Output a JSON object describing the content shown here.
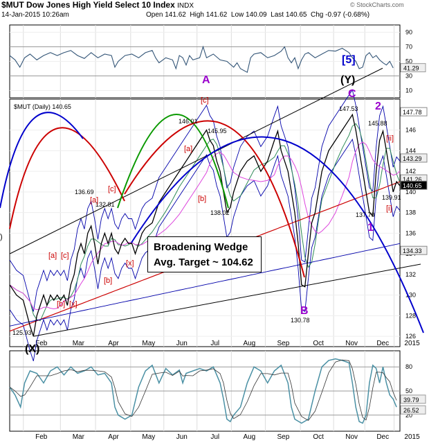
{
  "header": {
    "symbol": "$MUT",
    "name": "Dow Jones High Yield Select 10 Index",
    "exchange": "INDX",
    "date": "14-Jan-2015 10:26am",
    "open": "Open 141.62",
    "high": "High 141.62",
    "low": "Low 140.09",
    "last": "Last 140.65",
    "chg": "Chg -0.97 (-0.68%)",
    "watermark": "© StockCharts.com"
  },
  "price_label": "$MUT (Daily) 140.65",
  "annotation_box": {
    "line1": "Broadening Wedge",
    "line2": "Avg. Target ~ 104.62"
  },
  "colors": {
    "price": "#000000",
    "ma_short": "#2e8b57",
    "ma_mid": "#dd44dd",
    "ma_200": "#cc0000",
    "band": "#0000aa",
    "wave_red": "#cc0000",
    "wave_purple": "#9900cc",
    "wave_blue": "#0000cc",
    "rsi": "#335577",
    "stoch": "#4a90a4"
  },
  "chart_data": [
    {
      "type": "line",
      "title": "RSI",
      "ylim": [
        0,
        100
      ],
      "yticks": [
        10,
        30,
        50,
        70,
        90
      ],
      "value_labels": [
        "41.29"
      ],
      "points": [
        [
          0,
          58
        ],
        [
          8,
          52
        ],
        [
          15,
          42
        ],
        [
          22,
          55
        ],
        [
          30,
          60
        ],
        [
          40,
          52
        ],
        [
          50,
          58
        ],
        [
          60,
          62
        ],
        [
          70,
          58
        ],
        [
          80,
          62
        ],
        [
          90,
          65
        ],
        [
          100,
          58
        ],
        [
          110,
          54
        ],
        [
          120,
          62
        ],
        [
          130,
          55
        ],
        [
          140,
          60
        ],
        [
          150,
          58
        ],
        [
          155,
          42
        ],
        [
          160,
          50
        ],
        [
          170,
          58
        ],
        [
          180,
          60
        ],
        [
          190,
          55
        ],
        [
          200,
          62
        ],
        [
          210,
          65
        ],
        [
          215,
          55
        ],
        [
          220,
          48
        ],
        [
          230,
          55
        ],
        [
          240,
          52
        ],
        [
          245,
          40
        ],
        [
          250,
          58
        ],
        [
          255,
          55
        ],
        [
          260,
          45
        ],
        [
          265,
          58
        ],
        [
          270,
          52
        ],
        [
          280,
          55
        ],
        [
          285,
          70
        ],
        [
          290,
          55
        ],
        [
          300,
          60
        ],
        [
          310,
          52
        ],
        [
          320,
          50
        ],
        [
          330,
          42
        ],
        [
          335,
          48
        ],
        [
          340,
          40
        ],
        [
          350,
          35
        ],
        [
          355,
          55
        ],
        [
          360,
          60
        ],
        [
          370,
          62
        ],
        [
          380,
          55
        ],
        [
          390,
          58
        ],
        [
          400,
          64
        ],
        [
          405,
          70
        ],
        [
          410,
          55
        ],
        [
          415,
          48
        ],
        [
          420,
          55
        ],
        [
          425,
          40
        ],
        [
          430,
          52
        ],
        [
          435,
          60
        ],
        [
          440,
          62
        ],
        [
          450,
          55
        ],
        [
          460,
          60
        ],
        [
          470,
          65
        ],
        [
          480,
          64
        ],
        [
          490,
          68
        ],
        [
          500,
          62
        ],
        [
          505,
          55
        ],
        [
          510,
          50
        ],
        [
          515,
          40
        ],
        [
          520,
          42
        ],
        [
          525,
          58
        ],
        [
          530,
          62
        ],
        [
          535,
          55
        ],
        [
          540,
          58
        ],
        [
          545,
          52
        ],
        [
          550,
          48
        ],
        [
          555,
          45
        ],
        [
          560,
          50
        ],
        [
          565,
          41
        ]
      ]
    },
    {
      "type": "line",
      "title": "$MUT (Daily) 140.65",
      "ylim": [
        125,
        149
      ],
      "yticks": [
        126,
        128,
        130,
        132,
        134,
        136,
        138,
        140,
        142,
        144,
        146
      ],
      "xticks": [
        "Feb",
        "Mar",
        "Apr",
        "May",
        "Jun",
        "Jul",
        "Aug",
        "Sep",
        "Oct",
        "Nov",
        "Dec",
        "2015"
      ],
      "price_labels": [
        "147.78",
        "143.29",
        "141.26",
        "140.65",
        "134.33"
      ],
      "point_labels": [
        "125.93",
        "132.81",
        "136.69",
        "146.01",
        "138.02",
        "145.95",
        "130.78",
        "147.53",
        "145.88",
        "137.70",
        "139.91"
      ],
      "wave_labels": [
        "[a]",
        "[c]",
        "[b]",
        "[x]",
        "[a]",
        "[c]",
        "[b]",
        "[x]",
        "[a]",
        "[c]",
        "[b]",
        "A",
        "B",
        "C",
        "[5]",
        "(Y)",
        "(X)",
        "2",
        "1",
        "[i]",
        "[ii]",
        ")"
      ],
      "series": [
        {
          "name": "$MUT",
          "points": [
            [
              0,
              131
            ],
            [
              10,
              130
            ],
            [
              20,
              129.5
            ],
            [
              30,
              127
            ],
            [
              35,
              126
            ],
            [
              40,
              128
            ],
            [
              45,
              129
            ],
            [
              50,
              130
            ],
            [
              55,
              129
            ],
            [
              60,
              130
            ],
            [
              65,
              129.5
            ],
            [
              70,
              130
            ],
            [
              75,
              129.5
            ],
            [
              80,
              130
            ],
            [
              85,
              129
            ],
            [
              90,
              131
            ],
            [
              95,
              132
            ],
            [
              100,
              134
            ],
            [
              105,
              135
            ],
            [
              110,
              134
            ],
            [
              115,
              136
            ],
            [
              120,
              136.7
            ],
            [
              125,
              135
            ],
            [
              130,
              133
            ],
            [
              135,
              135
            ],
            [
              140,
              136
            ],
            [
              145,
              135
            ],
            [
              150,
              136
            ],
            [
              155,
              134.5
            ],
            [
              160,
              134
            ],
            [
              165,
              135
            ],
            [
              170,
              135.5
            ],
            [
              175,
              135
            ],
            [
              180,
              135
            ],
            [
              185,
              134
            ],
            [
              190,
              135
            ],
            [
              195,
              136
            ],
            [
              200,
              136.5
            ],
            [
              210,
              137
            ],
            [
              220,
              139
            ],
            [
              230,
              140
            ],
            [
              240,
              141
            ],
            [
              250,
              142
            ],
            [
              260,
              143
            ],
            [
              270,
              144
            ],
            [
              280,
              145
            ],
            [
              290,
              146
            ],
            [
              295,
              145
            ],
            [
              300,
              144.5
            ],
            [
              305,
              143
            ],
            [
              310,
              142
            ],
            [
              315,
              140
            ],
            [
              320,
              138
            ],
            [
              325,
              138.5
            ],
            [
              330,
              140
            ],
            [
              340,
              142
            ],
            [
              350,
              143
            ],
            [
              360,
              143.5
            ],
            [
              370,
              142
            ],
            [
              380,
              143
            ],
            [
              390,
              145
            ],
            [
              395,
              145.9
            ],
            [
              400,
              144
            ],
            [
              405,
              143
            ],
            [
              410,
              142
            ],
            [
              415,
              140
            ],
            [
              420,
              138
            ],
            [
              425,
              135
            ],
            [
              430,
              131
            ],
            [
              435,
              130.8
            ],
            [
              440,
              134
            ],
            [
              445,
              137
            ],
            [
              450,
              138
            ],
            [
              455,
              140
            ],
            [
              460,
              142
            ],
            [
              470,
              144
            ],
            [
              480,
              145
            ],
            [
              490,
              146
            ],
            [
              500,
              147
            ],
            [
              505,
              147.5
            ],
            [
              510,
              146
            ],
            [
              515,
              144
            ],
            [
              520,
              142
            ],
            [
              525,
              140
            ],
            [
              530,
              138
            ],
            [
              535,
              137.7
            ],
            [
              540,
              142
            ],
            [
              545,
              145
            ],
            [
              550,
              145.9
            ],
            [
              555,
              144
            ],
            [
              560,
              142
            ],
            [
              565,
              140
            ],
            [
              570,
              141
            ],
            [
              575,
              140.6
            ]
          ]
        }
      ]
    },
    {
      "type": "line",
      "title": "Stochastic",
      "ylim": [
        0,
        100
      ],
      "yticks": [
        20,
        50,
        80
      ],
      "value_labels": [
        "39.79",
        "26.52"
      ],
      "points": [
        [
          0,
          55
        ],
        [
          8,
          45
        ],
        [
          16,
          30
        ],
        [
          22,
          60
        ],
        [
          30,
          75
        ],
        [
          40,
          72
        ],
        [
          50,
          60
        ],
        [
          60,
          75
        ],
        [
          70,
          80
        ],
        [
          80,
          70
        ],
        [
          90,
          80
        ],
        [
          100,
          72
        ],
        [
          110,
          75
        ],
        [
          120,
          80
        ],
        [
          130,
          70
        ],
        [
          140,
          72
        ],
        [
          150,
          60
        ],
        [
          155,
          30
        ],
        [
          160,
          20
        ],
        [
          170,
          15
        ],
        [
          180,
          20
        ],
        [
          190,
          55
        ],
        [
          200,
          75
        ],
        [
          210,
          82
        ],
        [
          220,
          60
        ],
        [
          230,
          78
        ],
        [
          240,
          70
        ],
        [
          250,
          76
        ],
        [
          255,
          60
        ],
        [
          260,
          72
        ],
        [
          270,
          75
        ],
        [
          280,
          78
        ],
        [
          290,
          75
        ],
        [
          300,
          80
        ],
        [
          310,
          60
        ],
        [
          315,
          40
        ],
        [
          320,
          15
        ],
        [
          325,
          12
        ],
        [
          330,
          20
        ],
        [
          340,
          30
        ],
        [
          350,
          60
        ],
        [
          360,
          80
        ],
        [
          370,
          75
        ],
        [
          380,
          60
        ],
        [
          390,
          75
        ],
        [
          400,
          82
        ],
        [
          410,
          60
        ],
        [
          415,
          30
        ],
        [
          420,
          15
        ],
        [
          430,
          10
        ],
        [
          440,
          15
        ],
        [
          450,
          50
        ],
        [
          460,
          80
        ],
        [
          470,
          88
        ],
        [
          480,
          90
        ],
        [
          490,
          88
        ],
        [
          500,
          85
        ],
        [
          505,
          60
        ],
        [
          510,
          30
        ],
        [
          515,
          12
        ],
        [
          520,
          10
        ],
        [
          525,
          20
        ],
        [
          530,
          60
        ],
        [
          535,
          82
        ],
        [
          540,
          78
        ],
        [
          545,
          60
        ],
        [
          550,
          80
        ],
        [
          555,
          60
        ],
        [
          560,
          45
        ],
        [
          565,
          40
        ],
        [
          570,
          30
        ]
      ]
    }
  ]
}
